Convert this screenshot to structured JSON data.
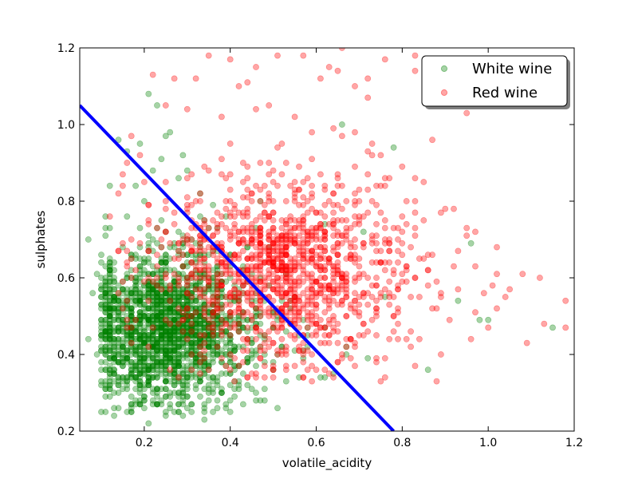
{
  "chart_data": {
    "type": "scatter",
    "xlabel": "volatile_acidity",
    "ylabel": "sulphates",
    "xlim": [
      0.05,
      1.2
    ],
    "ylim": [
      0.2,
      1.2
    ],
    "x_ticks": [
      "0.2",
      "0.4",
      "0.6",
      "0.8",
      "1.0",
      "1.2"
    ],
    "y_ticks": [
      "0.2",
      "0.4",
      "0.6",
      "0.8",
      "1.0",
      "1.2"
    ],
    "grid": false,
    "legend_position": "top-right",
    "series": [
      {
        "name": "White wine",
        "color": "#008000",
        "opacity": 0.35,
        "points": [
          [
            0.12,
            0.84
          ],
          [
            0.14,
            0.96
          ],
          [
            0.16,
            0.93
          ],
          [
            0.21,
            1.08
          ],
          [
            0.23,
            1.05
          ],
          [
            0.26,
            0.98
          ],
          [
            0.19,
            0.95
          ],
          [
            0.24,
            0.91
          ],
          [
            0.28,
            0.86
          ],
          [
            0.3,
            0.88
          ],
          [
            0.33,
            0.82
          ],
          [
            0.36,
            0.79
          ],
          [
            0.66,
            1.0
          ],
          [
            0.78,
            0.94
          ],
          [
            0.62,
            0.74
          ],
          [
            0.71,
            0.72
          ],
          [
            0.96,
            0.69
          ],
          [
            0.98,
            0.49
          ],
          [
            1.0,
            0.49
          ],
          [
            1.15,
            0.47
          ],
          [
            0.86,
            0.36
          ],
          [
            0.93,
            0.54
          ],
          [
            0.76,
            0.55
          ],
          [
            0.11,
            0.25
          ],
          [
            0.21,
            0.22
          ],
          [
            0.34,
            0.23
          ],
          [
            0.28,
            0.27
          ],
          [
            0.39,
            0.26
          ],
          [
            0.48,
            0.28
          ],
          [
            0.44,
            0.32
          ],
          [
            0.53,
            0.33
          ],
          [
            0.61,
            0.34
          ],
          [
            0.64,
            0.35
          ],
          [
            0.72,
            0.39
          ],
          [
            0.67,
            0.42
          ],
          [
            0.55,
            0.41
          ],
          [
            0.58,
            0.45
          ],
          [
            0.62,
            0.47
          ],
          [
            0.09,
            0.4
          ],
          [
            0.07,
            0.44
          ],
          [
            0.08,
            0.56
          ],
          [
            0.09,
            0.61
          ],
          [
            0.07,
            0.7
          ],
          [
            0.11,
            0.76
          ],
          [
            0.1,
            0.66
          ],
          [
            0.38,
            0.55
          ],
          [
            0.42,
            0.5
          ],
          [
            0.46,
            0.52
          ],
          [
            0.5,
            0.47
          ],
          [
            0.25,
            0.97
          ],
          [
            0.29,
            0.92
          ],
          [
            0.22,
            0.88
          ],
          [
            0.18,
            0.84
          ],
          [
            0.35,
            0.45
          ],
          [
            0.31,
            0.58
          ],
          [
            0.4,
            0.4
          ],
          [
            0.52,
            0.42
          ],
          [
            0.45,
            0.39
          ],
          [
            0.33,
            0.36
          ],
          [
            0.27,
            0.33
          ],
          [
            0.19,
            0.31
          ]
        ],
        "cluster": {
          "cx": 0.25,
          "cy": 0.47,
          "sx": 0.085,
          "sy": 0.085,
          "count": 1900,
          "xmin": 0.1,
          "ymin": 0.24
        }
      },
      {
        "name": "Red wine",
        "color": "#ff0000",
        "opacity": 0.35,
        "points": [
          [
            0.35,
            1.18
          ],
          [
            0.4,
            1.17
          ],
          [
            0.46,
            1.15
          ],
          [
            0.51,
            1.18
          ],
          [
            0.57,
            1.18
          ],
          [
            0.66,
            1.2
          ],
          [
            0.76,
            1.17
          ],
          [
            0.83,
            1.18
          ],
          [
            0.22,
            1.13
          ],
          [
            0.27,
            1.12
          ],
          [
            0.32,
            1.12
          ],
          [
            0.42,
            1.1
          ],
          [
            0.44,
            1.11
          ],
          [
            0.61,
            1.12
          ],
          [
            0.63,
            1.15
          ],
          [
            0.65,
            1.14
          ],
          [
            0.72,
            1.07
          ],
          [
            0.69,
            1.1
          ],
          [
            0.25,
            1.05
          ],
          [
            0.3,
            1.04
          ],
          [
            0.38,
            1.02
          ],
          [
            0.49,
            1.05
          ],
          [
            0.55,
            1.02
          ],
          [
            0.59,
            0.98
          ],
          [
            0.66,
            0.97
          ],
          [
            0.73,
            0.95
          ],
          [
            0.75,
            0.92
          ],
          [
            0.8,
            0.89
          ],
          [
            0.85,
            0.85
          ],
          [
            0.9,
            0.78
          ],
          [
            0.95,
            0.73
          ],
          [
            0.92,
            0.63
          ],
          [
            0.97,
            0.63
          ],
          [
            1.02,
            0.61
          ],
          [
            1.08,
            0.61
          ],
          [
            1.12,
            0.6
          ],
          [
            1.18,
            0.54
          ],
          [
            1.13,
            0.48
          ],
          [
            1.18,
            0.47
          ],
          [
            1.05,
            0.57
          ],
          [
            1.02,
            0.52
          ],
          [
            1.0,
            0.47
          ],
          [
            1.09,
            0.43
          ],
          [
            0.96,
            0.44
          ],
          [
            0.89,
            0.4
          ],
          [
            0.88,
            0.33
          ],
          [
            0.83,
            0.37
          ],
          [
            0.78,
            0.46
          ],
          [
            0.71,
            0.45
          ],
          [
            0.65,
            0.43
          ],
          [
            0.12,
            0.76
          ],
          [
            0.14,
            0.82
          ],
          [
            0.16,
            0.9
          ],
          [
            0.17,
            0.97
          ],
          [
            0.19,
            0.92
          ],
          [
            0.2,
            0.85
          ],
          [
            0.63,
            0.35
          ],
          [
            0.57,
            0.38
          ],
          [
            0.82,
            0.55
          ],
          [
            0.86,
            0.58
          ],
          [
            0.81,
            0.63
          ],
          [
            0.87,
            0.66
          ],
          [
            0.93,
            0.57
          ],
          [
            0.99,
            0.56
          ],
          [
            1.04,
            0.55
          ],
          [
            0.91,
            0.49
          ],
          [
            0.84,
            0.44
          ],
          [
            0.97,
            0.51
          ],
          [
            0.79,
            0.7
          ],
          [
            0.83,
            0.73
          ],
          [
            0.7,
            0.8
          ],
          [
            0.74,
            0.84
          ]
        ],
        "cluster": {
          "cx": 0.52,
          "cy": 0.62,
          "sx": 0.13,
          "sy": 0.11,
          "count": 1300,
          "xmin": 0.14,
          "ymin": 0.33
        }
      }
    ],
    "decision_line": {
      "color": "#0000ff",
      "x": [
        0.05,
        0.78
      ],
      "y": [
        1.05,
        0.2
      ]
    }
  }
}
